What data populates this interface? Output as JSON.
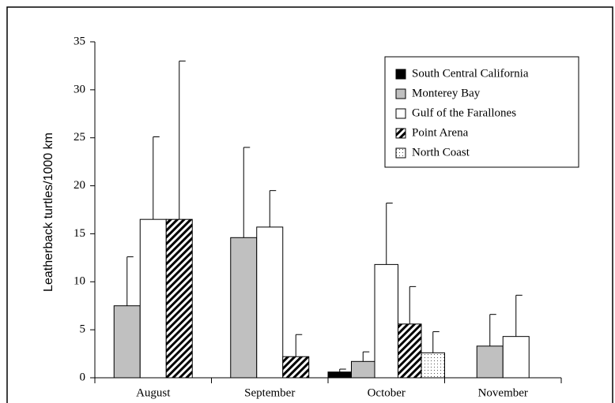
{
  "chart_data": {
    "type": "bar",
    "y_label": "Leatherback turtles/1000 km",
    "categories": [
      "August",
      "September",
      "October",
      "November"
    ],
    "ylim": [
      0,
      35
    ],
    "yticks": [
      0,
      5,
      10,
      15,
      20,
      25,
      30,
      35
    ],
    "legend_position": "upper right",
    "series": [
      {
        "name": "South Central California",
        "color": "#000000",
        "pattern": "solid",
        "values": [
          null,
          null,
          0.6,
          null
        ],
        "errors": [
          null,
          null,
          0.3,
          null
        ]
      },
      {
        "name": "Monterey Bay",
        "color": "#c0c0c0",
        "pattern": "solid",
        "values": [
          7.5,
          14.6,
          1.7,
          3.3
        ],
        "errors": [
          5.1,
          9.4,
          1.0,
          3.3
        ]
      },
      {
        "name": "Gulf of the Farallones",
        "color": "#ffffff",
        "pattern": "solid",
        "values": [
          16.5,
          15.7,
          11.8,
          4.3
        ],
        "errors": [
          8.6,
          3.8,
          6.4,
          4.3
        ]
      },
      {
        "name": "Point Arena",
        "color": "#000000",
        "pattern": "hatch",
        "values": [
          16.5,
          2.2,
          5.6,
          null
        ],
        "errors": [
          16.5,
          2.3,
          3.9,
          null
        ]
      },
      {
        "name": "North Coast",
        "color": "#000000",
        "pattern": "dots",
        "values": [
          null,
          null,
          2.6,
          null
        ],
        "errors": [
          null,
          null,
          2.2,
          null
        ]
      }
    ]
  }
}
